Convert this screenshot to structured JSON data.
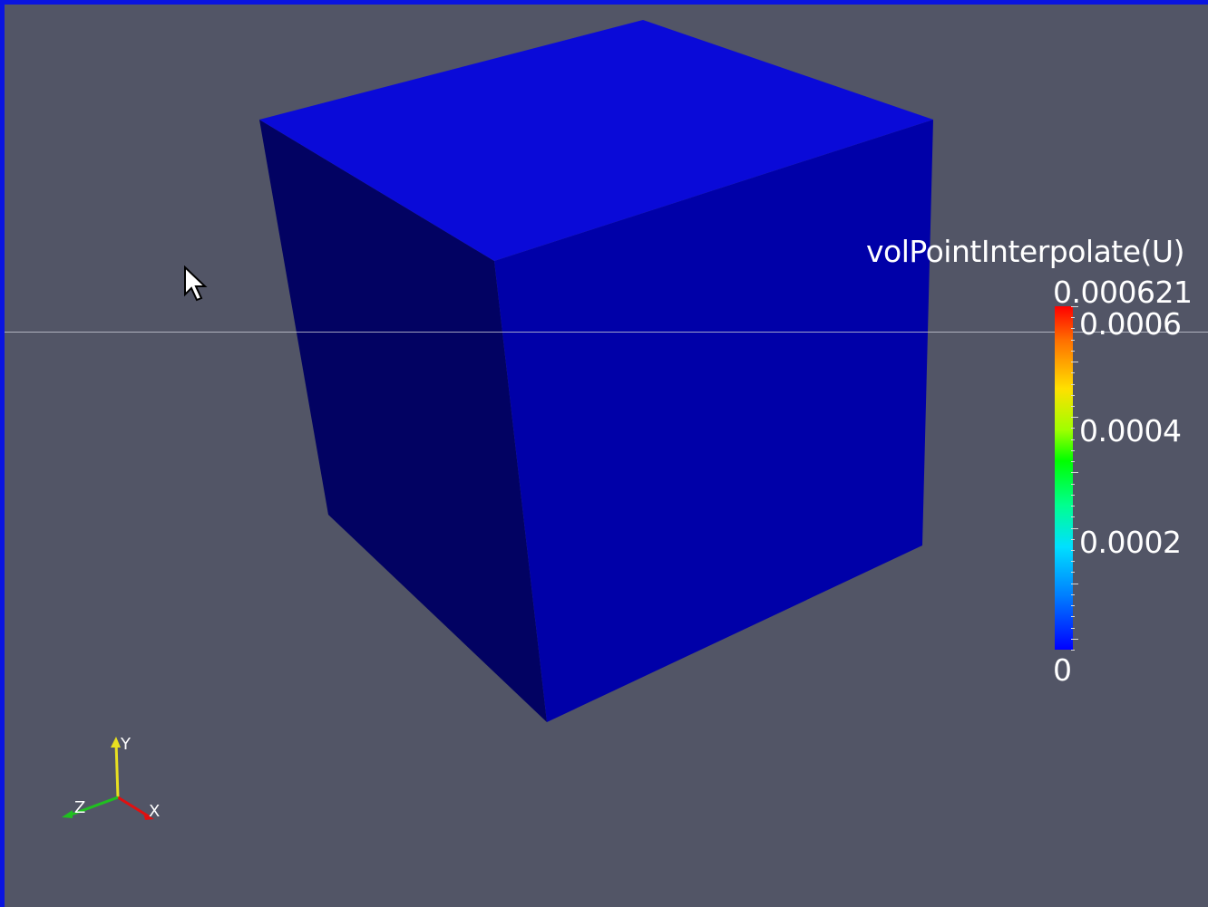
{
  "render_view": {
    "name": "3D Render View",
    "background_color": "#525566",
    "frame_color": "#0a14e0",
    "object": {
      "shape": "cube",
      "colors": {
        "top": "#0a0ad8",
        "front": "#0000a8",
        "left": "#020262"
      }
    }
  },
  "scalar_bar": {
    "title": "volPointInterpolate(U)",
    "max_label": "0.000621",
    "labels": [
      "0.0006",
      "0.0004",
      "0.0002"
    ],
    "min_label": "0",
    "range": [
      0,
      0.000621
    ],
    "colormap": "rainbow (blue to red)"
  },
  "orientation_axes": {
    "x_label": "X",
    "y_label": "Y",
    "z_label": "Z",
    "x_color": "#e01010",
    "y_color": "#e8e020",
    "z_color": "#20c020"
  },
  "cursor": {
    "icon": "arrow-cursor-icon"
  }
}
